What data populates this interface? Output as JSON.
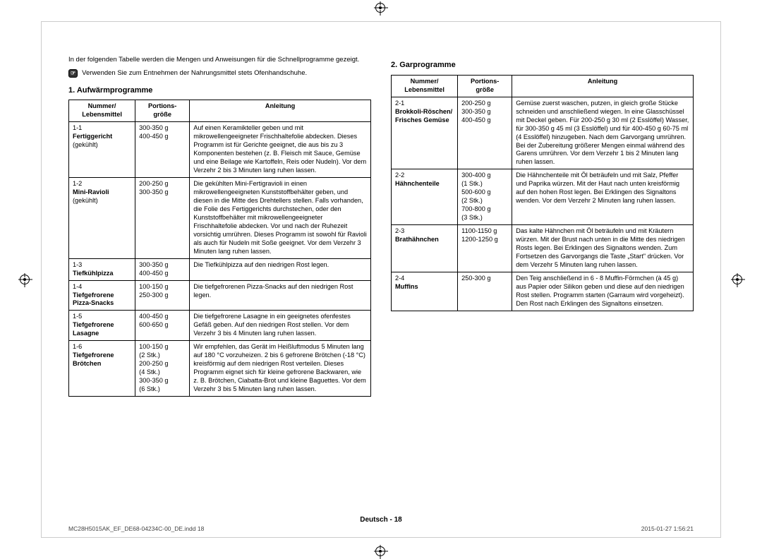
{
  "intro": "In der folgenden Tabelle werden die Mengen und Anweisungen für die Schnellprogramme gezeigt.",
  "notice": "Verwenden Sie zum Entnehmen der Nahrungsmittel stets Ofenhandschuhe.",
  "section1": {
    "title": "1. Aufwärmprogramme"
  },
  "section2": {
    "title": "2. Garprogramme"
  },
  "headers": {
    "col1": "Nummer/\nLebensmittel",
    "col2": "Portions-\ngröße",
    "col3": "Anleitung"
  },
  "table1": [
    {
      "num": "1-1",
      "name": "Fertiggericht",
      "sub": "(gekühlt)",
      "portion": "300-350 g\n400-450 g",
      "instr": "Auf einen Keramikteller geben und mit mikrowellengeeigneter Frischhaltefolie abdecken. Dieses Programm ist für Gerichte geeignet, die aus bis zu 3 Komponenten bestehen (z. B. Fleisch mit Sauce, Gemüse und eine Beilage wie Kartoffeln, Reis oder Nudeln).\nVor dem Verzehr 2 bis 3 Minuten lang ruhen lassen."
    },
    {
      "num": "1-2",
      "name": "Mini-Ravioli",
      "sub": "(gekühlt)",
      "portion": "200-250 g\n300-350 g",
      "instr": "Die gekühlten Mini-Fertigravioli in einen mikrowellengeeigneten Kunststoffbehälter geben, und diesen in die Mitte des Drehtellers stellen. Falls vorhanden, die Folie des Fertiggerichts durchstechen, oder den Kunststoffbehälter mit mikrowellengeeigneter Frischhaltefolie abdecken. Vor und nach der Ruhezeit vorsichtig umrühren. Dieses Programm ist sowohl für Ravioli als auch für Nudeln mit Soße geeignet.\nVor dem Verzehr 3 Minuten lang ruhen lassen."
    },
    {
      "num": "1-3",
      "name": "Tiefkühlpizza",
      "sub": "",
      "portion": "300-350 g\n400-450 g",
      "instr": "Die Tiefkühlpizza auf den niedrigen Rost legen."
    },
    {
      "num": "1-4",
      "name": "Tiefgefrorene Pizza-Snacks",
      "sub": "",
      "portion": "100-150 g\n250-300 g",
      "instr": "Die tiefgefrorenen Pizza-Snacks auf den niedrigen Rost legen."
    },
    {
      "num": "1-5",
      "name": "Tiefgefrorene Lasagne",
      "sub": "",
      "portion": "400-450 g\n600-650 g",
      "instr": "Die tiefgefrorene Lasagne in ein geeignetes ofenfestes Gefäß geben. Auf den niedrigen Rost stellen.\nVor dem Verzehr 3 bis 4 Minuten lang ruhen lassen."
    },
    {
      "num": "1-6",
      "name": "Tiefgefrorene Brötchen",
      "sub": "",
      "portion": "100-150 g\n  (2 Stk.)\n200-250 g\n  (4 Stk.)\n300-350 g\n  (6 Stk.)",
      "instr": "Wir empfehlen, das Gerät im Heißluftmodus 5 Minuten lang auf 180 °C vorzuheizen. 2 bis 6 gefrorene Brötchen (-18 °C) kreisförmig auf dem niedrigen Rost verteilen. Dieses Programm eignet sich für kleine gefrorene Backwaren, wie z. B. Brötchen, Ciabatta-Brot und kleine Baguettes.\nVor dem Verzehr 3 bis 5 Minuten lang ruhen lassen."
    }
  ],
  "table2": [
    {
      "num": "2-1",
      "name": "Brokkoli-Röschen/\nFrisches Gemüse",
      "sub": "",
      "portion": "200-250 g\n300-350 g\n400-450 g",
      "instr": "Gemüse zuerst waschen, putzen, in gleich große Stücke schneiden und anschließend wiegen. In eine Glasschüssel mit Deckel geben. Für 200-250 g 30 ml (2 Esslöffel) Wasser, für 300-350 g 45 ml (3 Esslöffel) und für 400-450 g 60-75 ml (4 Esslöffel) hinzugeben. Nach dem Garvorgang umrühren. Bei der Zubereitung größerer Mengen einmal während des Garens umrühren. Vor dem Verzehr 1 bis 2 Minuten lang ruhen lassen."
    },
    {
      "num": "2-2",
      "name": "Hähnchenteile",
      "sub": "",
      "portion": "300-400 g\n  (1 Stk.)\n500-600 g\n  (2 Stk.)\n700-800 g\n  (3 Stk.)",
      "instr": "Die Hähnchenteile mit Öl beträufeln und mit Salz, Pfeffer und Paprika würzen. Mit der Haut nach unten kreisförmig auf den hohen Rost legen. Bei Erklingen des Signaltons wenden.\nVor dem Verzehr 2 Minuten lang ruhen lassen."
    },
    {
      "num": "2-3",
      "name": "Brathähnchen",
      "sub": "",
      "portion": "1100-1150 g\n1200-1250 g",
      "instr": "Das kalte Hähnchen mit Öl beträufeln und mit Kräutern würzen. Mit der Brust nach unten in die Mitte des niedrigen Rosts legen. Bei Erklingen des Signaltons wenden. Zum Fortsetzen des Garvorgangs die Taste „Start\" drücken.\nVor dem Verzehr 5 Minuten lang ruhen lassen."
    },
    {
      "num": "2-4",
      "name": "Muffins",
      "sub": "",
      "portion": "250-300 g",
      "instr": "Den Teig anschließend in 6 - 8 Muffin-Förmchen (à 45 g) aus Papier oder Silikon geben und diese auf den niedrigen Rost stellen. Programm starten (Garraum wird vorgeheizt).\nDen Rost nach Erklingen des Signaltons einsetzen."
    }
  ],
  "footer": "Deutsch - 18",
  "meta": {
    "file": "MC28H5015AK_EF_DE68-04234C-00_DE.indd   18",
    "date": "2015-01-27   1:56:21"
  }
}
